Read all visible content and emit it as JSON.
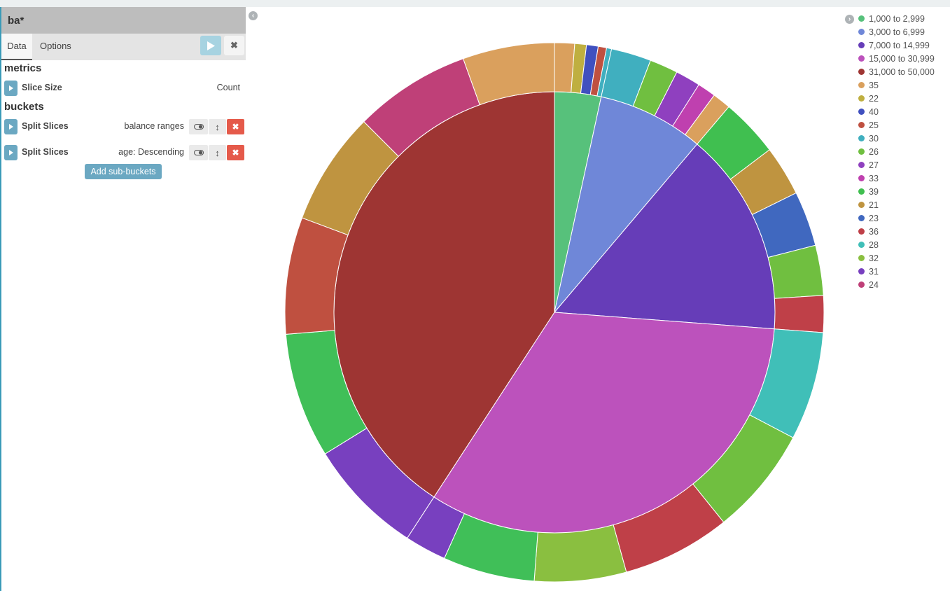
{
  "sidebar": {
    "title": "ba*",
    "tabs": [
      "Data",
      "Options"
    ],
    "metrics_title": "metrics",
    "buckets_title": "buckets",
    "metric": {
      "label": "Slice Size",
      "value": "Count"
    },
    "buckets": [
      {
        "label": "Split Slices",
        "value": "balance ranges"
      },
      {
        "label": "Split Slices",
        "value": "age: Descending"
      }
    ],
    "add_button": "Add sub-buckets"
  },
  "chart_data": {
    "type": "pie",
    "donut_levels": 2,
    "legend_position": "top-right",
    "inner": [
      {
        "name": "1,000 to 2,999",
        "value": 3.4,
        "color": "#57c17b"
      },
      {
        "name": "3,000 to 6,999",
        "value": 7.8,
        "color": "#6f87d8"
      },
      {
        "name": "7,000 to 14,999",
        "value": 15.0,
        "color": "#663db8"
      },
      {
        "name": "15,000 to 30,999",
        "value": 33.0,
        "color": "#bc52bc"
      },
      {
        "name": "31,000 to 50,000",
        "value": 40.8,
        "color": "#9e3533"
      }
    ],
    "outer": [
      {
        "parent": 0,
        "name": "35",
        "value": 1.2,
        "color": "#daa05d"
      },
      {
        "parent": 0,
        "name": "22",
        "value": 0.7,
        "color": "#bfaf40"
      },
      {
        "parent": 0,
        "name": "40",
        "value": 0.7,
        "color": "#4050bf"
      },
      {
        "parent": 0,
        "name": "25",
        "value": 0.5,
        "color": "#bf5040"
      },
      {
        "parent": 0,
        "name": "30",
        "value": 0.3,
        "color": "#40afbf"
      },
      {
        "parent": 1,
        "name": "30",
        "value": 2.4,
        "color": "#40afbf"
      },
      {
        "parent": 1,
        "name": "26",
        "value": 1.7,
        "color": "#70bf40"
      },
      {
        "parent": 1,
        "name": "27",
        "value": 1.5,
        "color": "#8f40bf"
      },
      {
        "parent": 1,
        "name": "33",
        "value": 1.1,
        "color": "#bf40af"
      },
      {
        "parent": 1,
        "name": "35",
        "value": 1.1,
        "color": "#daa05d"
      },
      {
        "parent": 2,
        "name": "39",
        "value": 3.5,
        "color": "#40bf50"
      },
      {
        "parent": 2,
        "name": "21",
        "value": 3.0,
        "color": "#bf9440"
      },
      {
        "parent": 2,
        "name": "23",
        "value": 3.3,
        "color": "#4068bf"
      },
      {
        "parent": 2,
        "name": "26",
        "value": 3.0,
        "color": "#70bf40"
      },
      {
        "parent": 2,
        "name": "36",
        "value": 2.2,
        "color": "#bf4048"
      },
      {
        "parent": 3,
        "name": "28",
        "value": 6.5,
        "color": "#40bfb8"
      },
      {
        "parent": 3,
        "name": "32",
        "value": 6.5,
        "color": "#70bf40"
      },
      {
        "parent": 3,
        "name": "36",
        "value": 6.5,
        "color": "#bf4048"
      },
      {
        "parent": 3,
        "name": "32",
        "value": 5.5,
        "color": "#8abf40"
      },
      {
        "parent": 3,
        "name": "39",
        "value": 5.5,
        "color": "#40bf58"
      },
      {
        "parent": 3,
        "name": "31",
        "value": 2.5,
        "color": "#7840bf"
      },
      {
        "parent": 4,
        "name": "31",
        "value": 7.0,
        "color": "#7840bf"
      },
      {
        "parent": 4,
        "name": "39",
        "value": 7.5,
        "color": "#40bf58"
      },
      {
        "parent": 4,
        "name": "25",
        "value": 7.0,
        "color": "#bf5040"
      },
      {
        "parent": 4,
        "name": "21",
        "value": 6.8,
        "color": "#bf9440"
      },
      {
        "parent": 4,
        "name": "24",
        "value": 7.0,
        "color": "#bf4078"
      },
      {
        "parent": 4,
        "name": "35",
        "value": 5.5,
        "color": "#daa05d"
      }
    ],
    "legend": [
      {
        "label": "1,000 to 2,999",
        "color": "#57c17b"
      },
      {
        "label": "3,000 to 6,999",
        "color": "#6f87d8"
      },
      {
        "label": "7,000 to 14,999",
        "color": "#663db8"
      },
      {
        "label": "15,000 to 30,999",
        "color": "#bc52bc"
      },
      {
        "label": "31,000 to 50,000",
        "color": "#9e3533"
      },
      {
        "label": "35",
        "color": "#daa05d"
      },
      {
        "label": "22",
        "color": "#bfaf40"
      },
      {
        "label": "40",
        "color": "#4050bf"
      },
      {
        "label": "25",
        "color": "#bf5040"
      },
      {
        "label": "30",
        "color": "#40afbf"
      },
      {
        "label": "26",
        "color": "#70bf40"
      },
      {
        "label": "27",
        "color": "#8f40bf"
      },
      {
        "label": "33",
        "color": "#bf40af"
      },
      {
        "label": "39",
        "color": "#40bf50"
      },
      {
        "label": "21",
        "color": "#bf9440"
      },
      {
        "label": "23",
        "color": "#4068bf"
      },
      {
        "label": "36",
        "color": "#bf4048"
      },
      {
        "label": "28",
        "color": "#40bfb8"
      },
      {
        "label": "32",
        "color": "#8abf40"
      },
      {
        "label": "31",
        "color": "#7840bf"
      },
      {
        "label": "24",
        "color": "#bf4078"
      }
    ]
  }
}
